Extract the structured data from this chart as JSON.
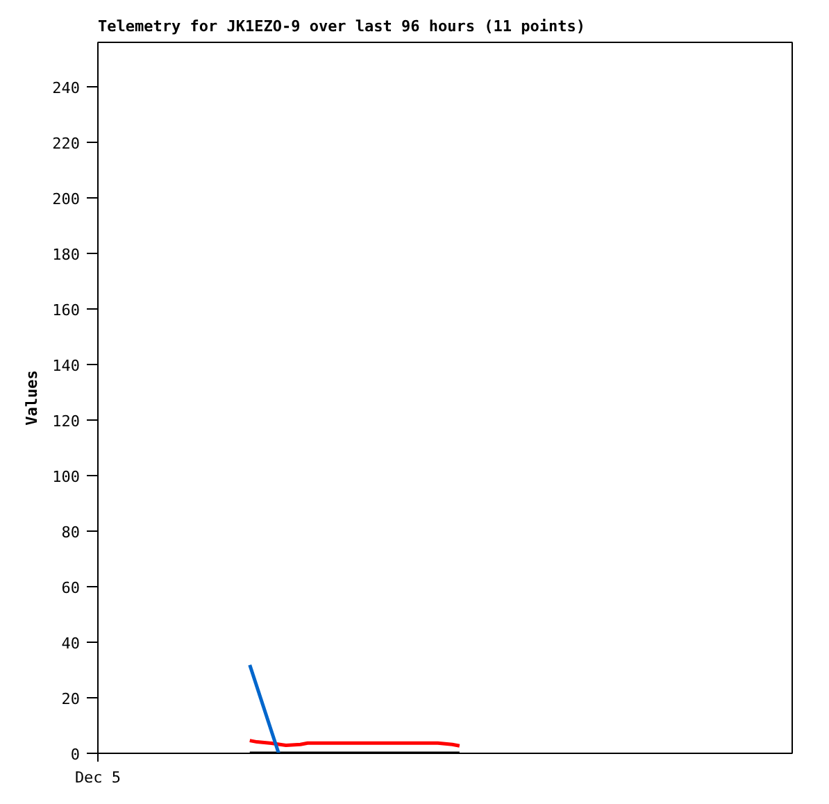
{
  "chart_data": {
    "type": "line",
    "title": "Telemetry for JK1EZO-9 over last 96 hours (11 points)",
    "ylabel": "Values",
    "categories": [
      "Dec 5",
      null,
      null,
      null,
      null,
      null,
      null,
      null,
      null,
      null,
      null,
      null,
      null,
      null,
      null,
      null,
      null,
      null,
      null,
      null,
      null,
      null,
      null,
      null,
      null,
      null,
      null,
      null,
      null,
      null,
      null,
      null,
      null,
      null,
      null,
      null,
      null,
      null,
      null,
      null,
      null,
      null,
      null,
      null,
      null,
      null,
      null,
      null,
      null,
      null,
      null,
      null,
      null,
      null,
      null,
      null,
      null,
      null,
      null,
      null,
      null,
      null,
      null,
      null,
      null,
      null,
      null,
      null,
      null,
      null,
      null,
      null,
      null,
      null,
      null,
      null,
      null,
      null,
      null,
      null,
      null,
      null,
      null,
      null,
      null,
      null,
      null,
      null,
      null,
      null,
      null,
      null,
      null,
      null,
      null,
      null,
      null
    ],
    "series": [
      {
        "color": "#000000",
        "values": [
          null,
          null,
          null,
          null,
          null,
          null,
          null,
          null,
          null,
          null,
          null,
          null,
          null,
          null,
          null,
          null,
          null,
          null,
          null,
          null,
          null,
          0,
          0,
          null,
          0,
          null,
          0,
          null,
          0,
          0,
          null,
          null,
          null,
          null,
          null,
          0,
          null,
          null,
          null,
          null,
          null,
          null,
          0,
          null,
          null,
          null,
          null,
          0,
          null,
          0,
          0,
          null,
          null,
          null,
          null,
          null,
          null,
          null,
          null,
          null,
          null,
          null,
          null,
          null,
          null,
          null,
          null,
          null,
          null,
          null,
          null,
          null,
          null,
          null,
          null,
          null,
          null,
          null,
          null,
          null,
          null,
          null,
          null,
          null,
          null,
          null,
          null,
          null,
          null,
          null,
          null,
          null,
          null,
          null,
          null,
          null,
          null
        ]
      },
      {
        "color": "#ff0000",
        "values": [
          null,
          null,
          null,
          null,
          null,
          null,
          null,
          null,
          null,
          null,
          null,
          null,
          null,
          null,
          null,
          null,
          null,
          null,
          null,
          null,
          null,
          4.6,
          4.1,
          null,
          3.6,
          null,
          2.9,
          null,
          3.2,
          3.7,
          null,
          null,
          null,
          null,
          null,
          3.7,
          null,
          null,
          null,
          null,
          null,
          null,
          3.7,
          null,
          null,
          null,
          null,
          3.7,
          null,
          3.2,
          2.7,
          null,
          null,
          null,
          null,
          null,
          null,
          null,
          null,
          null,
          null,
          null,
          null,
          null,
          null,
          null,
          null,
          null,
          null,
          null,
          null,
          null,
          null,
          null,
          null,
          null,
          null,
          null,
          null,
          null,
          null,
          null,
          null,
          null,
          null,
          null,
          null,
          null,
          null,
          null,
          null,
          null,
          null,
          null,
          null,
          null,
          null
        ]
      },
      {
        "color": "#0066cc",
        "values": [
          null,
          null,
          null,
          null,
          null,
          null,
          null,
          null,
          null,
          null,
          null,
          null,
          null,
          null,
          null,
          null,
          null,
          null,
          null,
          null,
          null,
          31.8,
          null,
          null,
          null,
          0,
          null,
          null,
          null,
          null,
          null,
          null,
          null,
          null,
          null,
          null,
          null,
          null,
          null,
          null,
          null,
          null,
          null,
          null,
          null,
          null,
          null,
          null,
          null,
          null,
          null,
          null,
          null,
          null,
          null,
          null,
          null,
          null,
          null,
          null,
          null,
          null,
          null,
          null,
          null,
          null,
          null,
          null,
          null,
          null,
          null,
          null,
          null,
          null,
          null,
          null,
          null,
          null,
          null,
          null,
          null,
          null,
          null,
          null,
          null,
          null,
          null,
          null,
          null,
          null,
          null,
          null,
          null,
          null,
          null,
          null,
          null
        ]
      }
    ],
    "ylim": [
      0,
      256
    ],
    "yticks": [
      0,
      20,
      40,
      60,
      80,
      100,
      120,
      140,
      160,
      180,
      200,
      220,
      240
    ],
    "grid": false
  }
}
